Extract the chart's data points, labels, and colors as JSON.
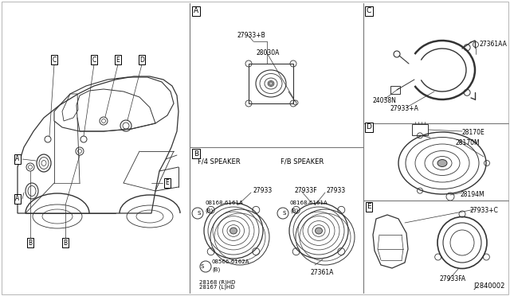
{
  "bg_color": "#ffffff",
  "line_color": "#333333",
  "fig_width": 6.4,
  "fig_height": 3.72,
  "parts": {
    "A_speaker": "27933+B",
    "A_amp": "28030A",
    "B_f4_screw1": "08168-6161A",
    "B_f4_screw_sub1": "(B)",
    "B_f4_part": "27933",
    "B_f4_bottom1": "28168 (R)HD",
    "B_f4_bottom2": "28167 (L)HD",
    "B_f4_screw2": "08566-6162A",
    "B_f4_screw_sub2": "(B)",
    "B_fb_screw1": "08168-6161A",
    "B_fb_screw_sub1": "(B)",
    "B_fb_part": "27933",
    "B_fb_part2": "27933F",
    "B_fb_bottom": "27361A",
    "C_ring": "27361AA",
    "C_harness": "24038N",
    "C_bracket": "27933+A",
    "D_top": "28170E",
    "D_mid": "28170M",
    "D_bottom": "28194M",
    "E_bracket": "27933+C",
    "E_speaker": "27933FA",
    "diagram_code": "J2840002"
  }
}
